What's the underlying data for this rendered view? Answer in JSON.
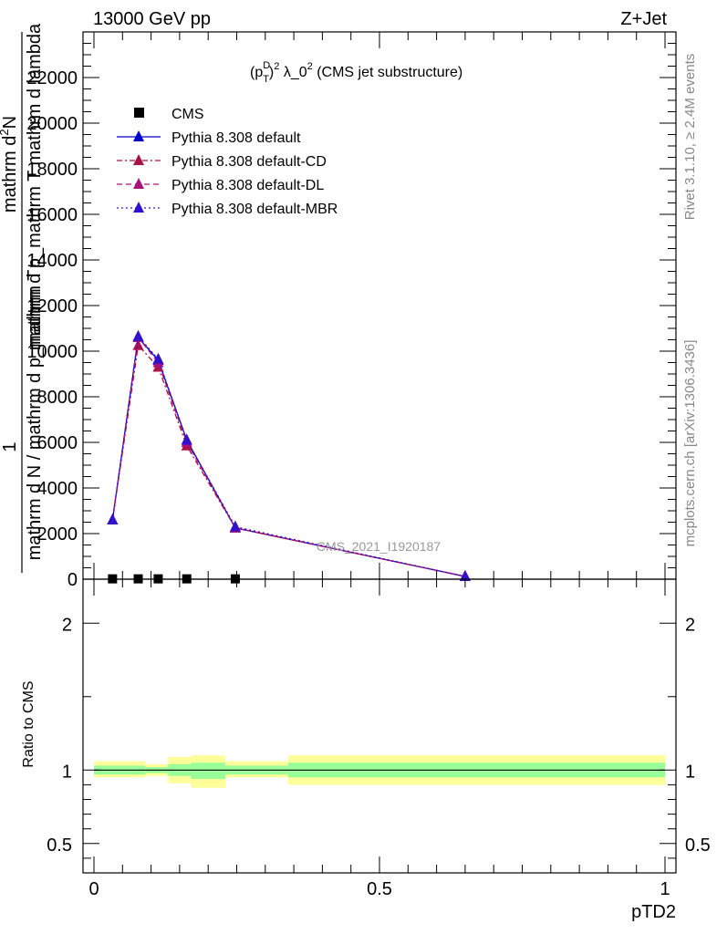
{
  "header": {
    "energy": "13000 GeV pp",
    "process": "Z+Jet",
    "watermark": "CMS_2021_I1920187",
    "side_top": "Rivet 3.1.10, ≥ 2.4M events",
    "side_bottom": "mcplots.cern.ch [arXiv:1306.3436]"
  },
  "chart_data": [
    {
      "type": "line",
      "title_parts": {
        "a": "(p",
        "sup1": "D",
        "sub1": "T",
        "sup2": "2",
        "b": " λ_0",
        "sup3": "2",
        "c": " (CMS jet substructure)"
      },
      "ylabel": {
        "one": "1",
        "line1": "mathrm d N / mathrm d p_mathrm T",
        "numerator": "mathrm d",
        "numerator_sup": "2",
        "numerator_tail": "N",
        "denominator": "mathrm d p_mathrm T mathrm d lambda"
      },
      "xlim": [
        0,
        1
      ],
      "ylim": [
        0,
        24000
      ],
      "y_ticks": [
        {
          "v": 0,
          "label": "0"
        },
        {
          "v": 2000,
          "label": "2000"
        },
        {
          "v": 4000,
          "label": "4000"
        },
        {
          "v": 6000,
          "label": "6000"
        },
        {
          "v": 8000,
          "label": "8000"
        },
        {
          "v": 10000,
          "label": "10000"
        },
        {
          "v": 12000,
          "label": "12000"
        },
        {
          "v": 14000,
          "label": "14000"
        },
        {
          "v": 16000,
          "label": "16000"
        },
        {
          "v": 18000,
          "label": "18000"
        },
        {
          "v": 20000,
          "label": "20000"
        },
        {
          "v": 22000,
          "label": "22000"
        }
      ],
      "legend": {
        "placement": "top-left"
      },
      "series": [
        {
          "name": "CMS",
          "color": "#000000",
          "marker": "square",
          "style": "none",
          "x": [
            0.0325,
            0.0775,
            0.1125,
            0.1625,
            0.2475
          ],
          "y": [
            15,
            15,
            15,
            15,
            15
          ]
        },
        {
          "name": "Pythia 8.308 default",
          "color": "#0000cc",
          "marker": "triangle",
          "style": "solid",
          "x": [
            0.0325,
            0.0775,
            0.1125,
            0.1625,
            0.2475,
            0.65
          ],
          "y": [
            2600,
            10600,
            9600,
            6100,
            2250,
            120
          ]
        },
        {
          "name": "Pythia 8.308 default-CD",
          "color": "#aa1144",
          "marker": "triangle",
          "style": "dashdot",
          "x": [
            0.0325,
            0.0775,
            0.1125,
            0.1625,
            0.2475,
            0.65
          ],
          "y": [
            2600,
            10250,
            9300,
            5850,
            2250,
            120
          ]
        },
        {
          "name": "Pythia 8.308 default-DL",
          "color": "#aa1177",
          "marker": "triangle",
          "style": "dashed",
          "x": [
            0.0325,
            0.0775,
            0.1125,
            0.1625,
            0.2475,
            0.65
          ],
          "y": [
            2600,
            10600,
            9500,
            6000,
            2250,
            120
          ]
        },
        {
          "name": "Pythia 8.308 default-MBR",
          "color": "#3311cc",
          "marker": "triangle",
          "style": "dotted",
          "x": [
            0.0325,
            0.0775,
            0.1125,
            0.1625,
            0.2475,
            0.65
          ],
          "y": [
            2600,
            10650,
            9650,
            6100,
            2300,
            120
          ]
        }
      ]
    },
    {
      "type": "area",
      "ylabel": "Ratio to CMS",
      "xlabel": "pTD2",
      "xlim": [
        0,
        1
      ],
      "ylim": [
        0.3,
        2.3
      ],
      "y_ticks": [
        {
          "v": 0.5,
          "label": "0.5"
        },
        {
          "v": 1,
          "label": "1"
        },
        {
          "v": 2,
          "label": "2"
        }
      ],
      "x_ticks": [
        {
          "v": 0,
          "label": "0"
        },
        {
          "v": 0.5,
          "label": "0.5"
        },
        {
          "v": 1,
          "label": "1"
        }
      ],
      "bands": {
        "yellow": "#ffff99",
        "green": "#99ff99",
        "bins": [
          {
            "x0": 0.0,
            "x1": 0.09,
            "y_lo": 0.95,
            "y_hi": 1.06,
            "g_lo": 0.97,
            "g_hi": 1.03
          },
          {
            "x0": 0.09,
            "x1": 0.13,
            "y_lo": 0.96,
            "y_hi": 1.04,
            "g_lo": 0.98,
            "g_hi": 1.02
          },
          {
            "x0": 0.13,
            "x1": 0.17,
            "y_lo": 0.91,
            "y_hi": 1.09,
            "g_lo": 0.96,
            "g_hi": 1.04
          },
          {
            "x0": 0.17,
            "x1": 0.23,
            "y_lo": 0.88,
            "y_hi": 1.1,
            "g_lo": 0.94,
            "g_hi": 1.05
          },
          {
            "x0": 0.23,
            "x1": 0.34,
            "y_lo": 0.95,
            "y_hi": 1.06,
            "g_lo": 0.97,
            "g_hi": 1.03
          },
          {
            "x0": 0.34,
            "x1": 1.0,
            "y_lo": 0.9,
            "y_hi": 1.1,
            "g_lo": 0.95,
            "g_hi": 1.05
          }
        ]
      },
      "reference_line": 1
    }
  ]
}
